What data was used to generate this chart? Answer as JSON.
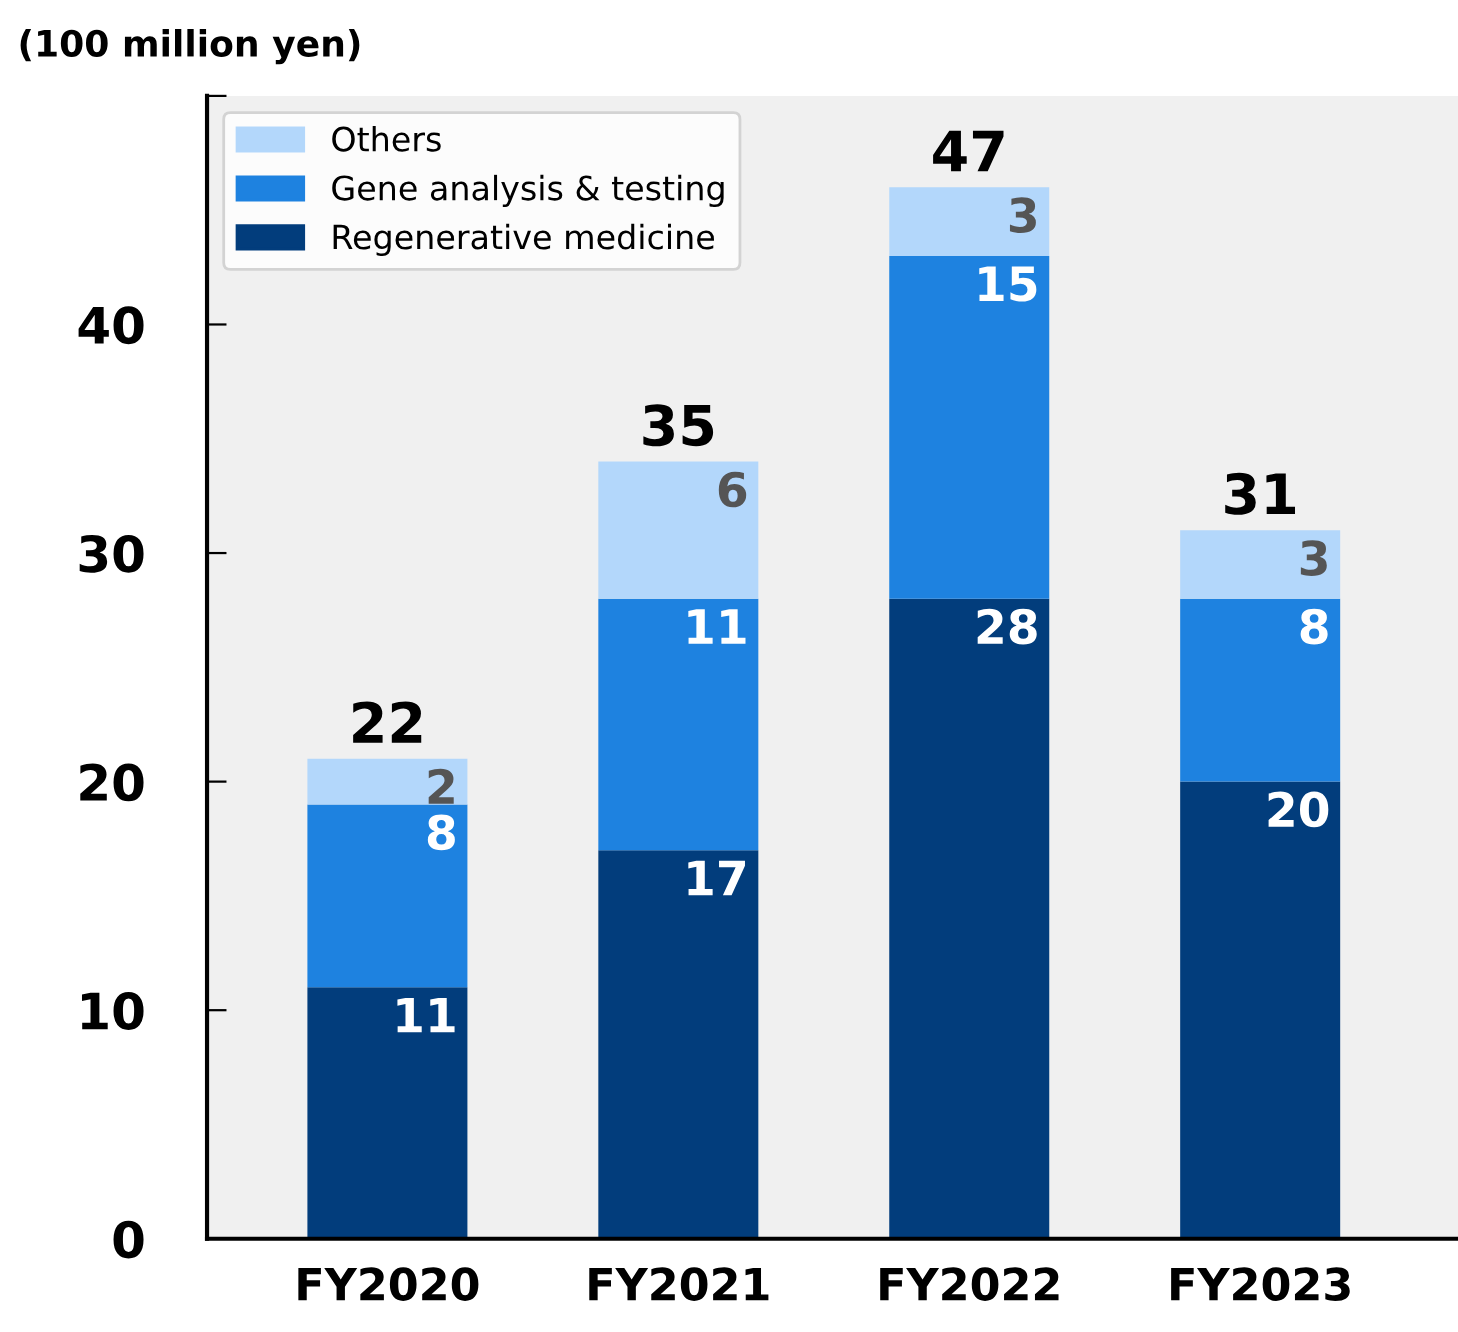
{
  "chart_data": {
    "type": "bar",
    "stacked": true,
    "ylabel": "(100 million yen)",
    "categories": [
      "FY2020",
      "FY2021",
      "FY2022",
      "FY2023"
    ],
    "series": [
      {
        "name": "Regenerative medicine",
        "color": "#023d7c",
        "values": [
          11,
          17,
          28,
          20
        ]
      },
      {
        "name": "Gene analysis & testing",
        "color": "#1e82e0",
        "values": [
          8,
          11,
          15,
          8
        ]
      },
      {
        "name": "Others",
        "color": "#b3d7fb",
        "values": [
          2,
          6,
          3,
          3
        ]
      }
    ],
    "data_labels": true,
    "totals": [
      "22",
      "35",
      "47",
      "31"
    ],
    "ylim": [
      0,
      50
    ],
    "yticks": [
      0,
      10,
      20,
      30,
      40,
      {
        "value": 50,
        "label": null
      }
    ],
    "grid": false,
    "legend": "top left"
  }
}
